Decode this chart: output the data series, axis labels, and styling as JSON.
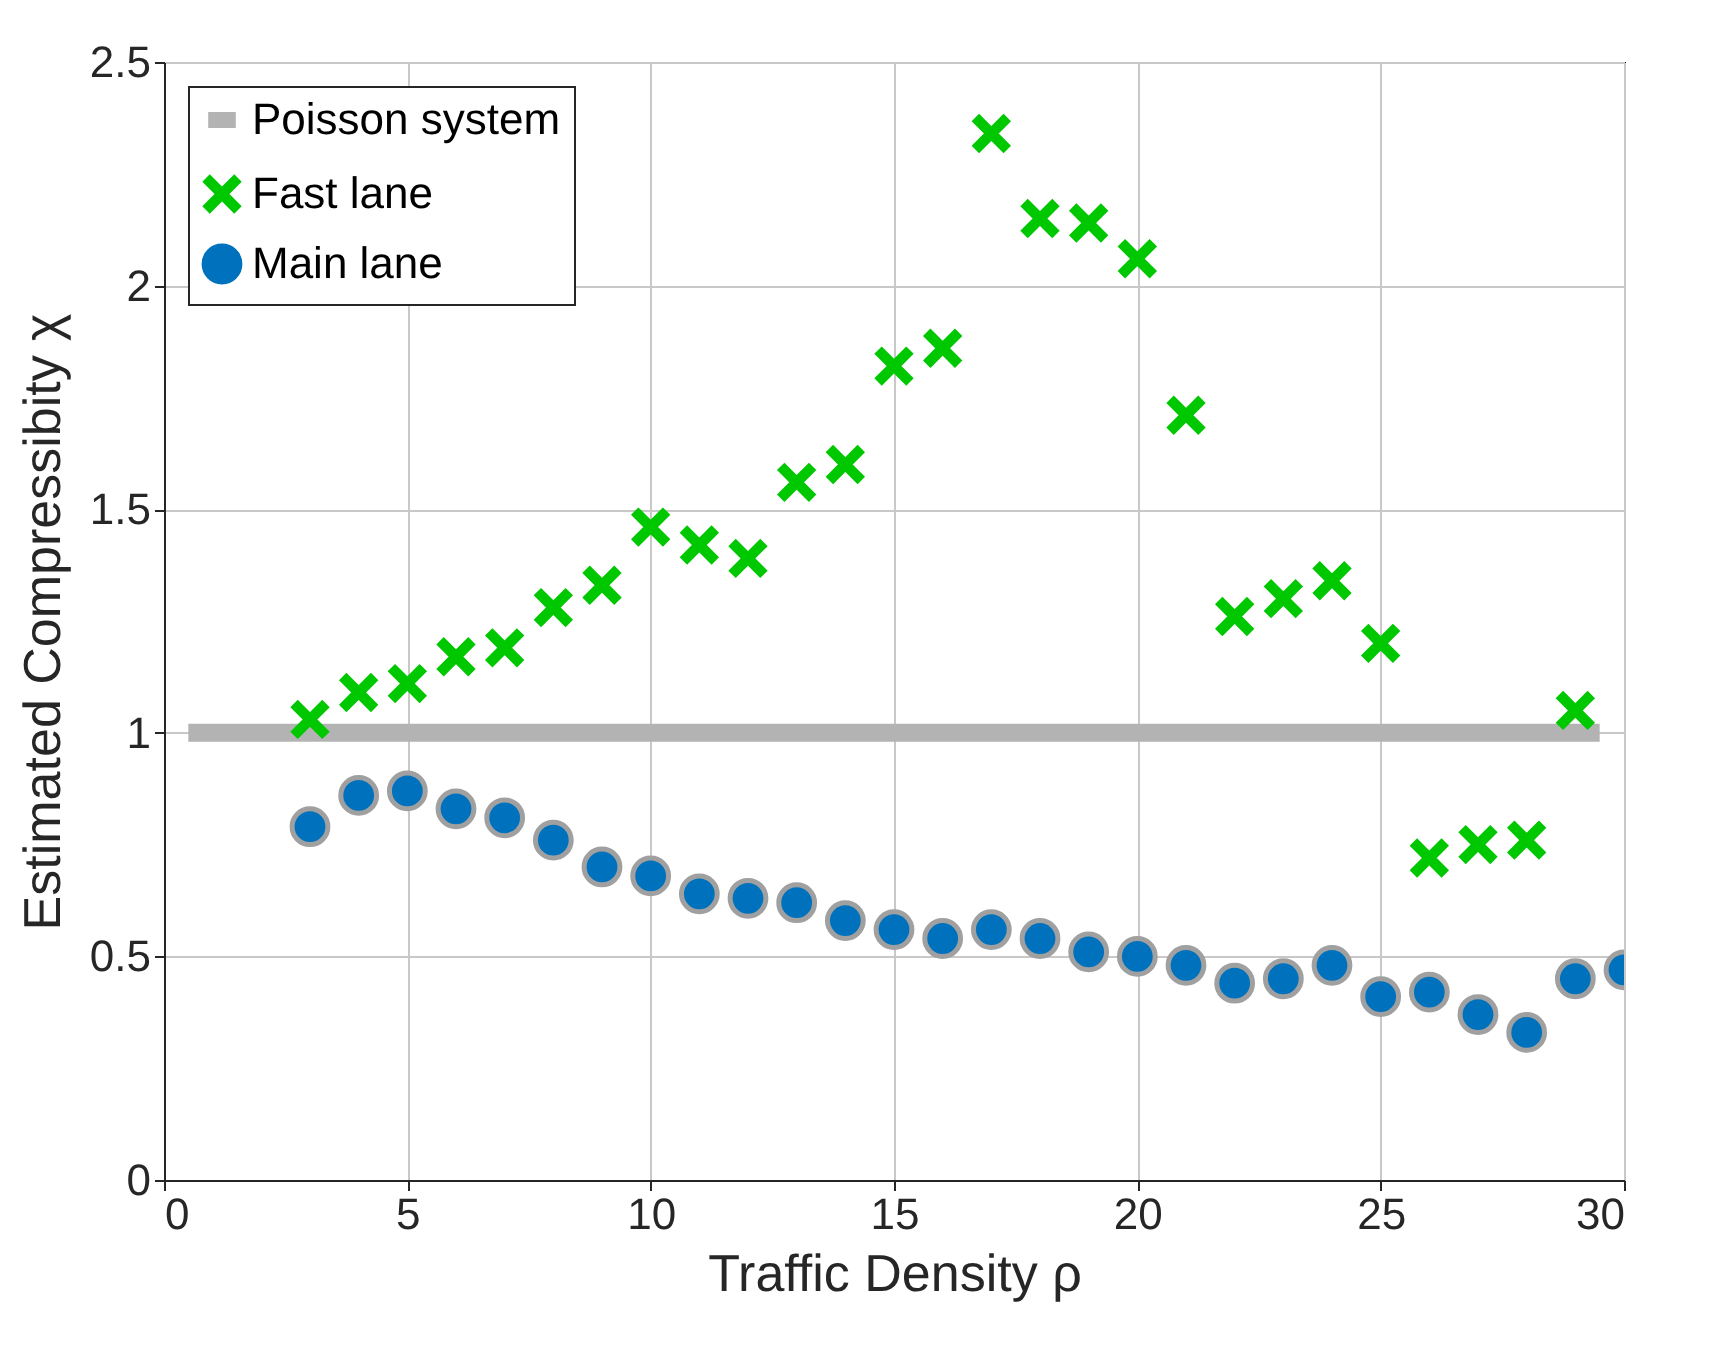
{
  "chart_data": {
    "type": "scatter",
    "xlabel": "Traffic Density ρ",
    "ylabel": "Estimated Compressibity χ",
    "xlim": [
      0,
      30
    ],
    "xticks": [
      0,
      5,
      10,
      15,
      20,
      25,
      30
    ],
    "ylim": [
      0,
      2.5
    ],
    "yticks": [
      0,
      0.5,
      1,
      1.5,
      2,
      2.5
    ],
    "grid": true,
    "legend": "top left",
    "series": [
      {
        "name": "Poisson system",
        "type": "line",
        "color": "#b3b3b3",
        "x": [
          0.5,
          29.5
        ],
        "values": [
          1,
          1
        ]
      },
      {
        "name": "Fast lane",
        "marker": "cross",
        "color": "#00c800",
        "x": [
          3,
          4,
          5,
          6,
          7,
          8,
          9,
          10,
          11,
          12,
          13,
          14,
          15,
          16,
          17,
          18,
          19,
          20,
          21,
          22,
          23,
          24,
          25,
          26,
          27,
          28,
          29
        ],
        "values": [
          1.03,
          1.09,
          1.11,
          1.17,
          1.19,
          1.28,
          1.33,
          1.46,
          1.42,
          1.39,
          1.56,
          1.6,
          1.82,
          1.86,
          2.34,
          2.15,
          2.14,
          2.06,
          1.71,
          1.26,
          1.3,
          1.34,
          1.2,
          0.72,
          0.75,
          0.76,
          1.05
        ]
      },
      {
        "name": "Main lane",
        "marker": "circle",
        "color": "#0072bd",
        "x": [
          3,
          4,
          5,
          6,
          7,
          8,
          9,
          10,
          11,
          12,
          13,
          14,
          15,
          16,
          17,
          18,
          19,
          20,
          21,
          22,
          23,
          24,
          25,
          26,
          27,
          28,
          29,
          30
        ],
        "values": [
          0.79,
          0.86,
          0.87,
          0.83,
          0.81,
          0.76,
          0.7,
          0.68,
          0.64,
          0.63,
          0.62,
          0.58,
          0.56,
          0.54,
          0.56,
          0.54,
          0.51,
          0.5,
          0.48,
          0.44,
          0.45,
          0.48,
          0.41,
          0.42,
          0.37,
          0.33,
          0.45,
          0.47
        ]
      }
    ]
  }
}
